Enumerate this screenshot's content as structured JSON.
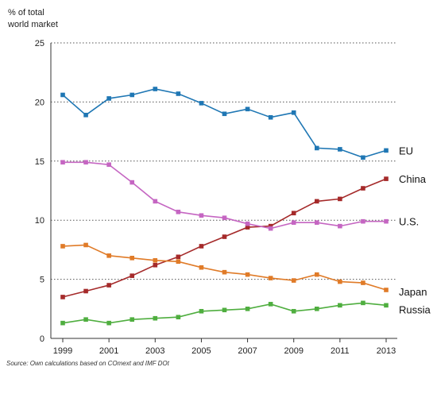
{
  "chart_data": {
    "type": "line",
    "ylabel_line1": "% of total",
    "ylabel_line2": "world market",
    "source": "Source: Own calculations based on COmext and IMF DOt",
    "x": [
      1999,
      2000,
      2001,
      2002,
      2003,
      2004,
      2005,
      2006,
      2007,
      2008,
      2009,
      2010,
      2011,
      2012,
      2013
    ],
    "xticks": [
      "1999",
      "2001",
      "2003",
      "2005",
      "2007",
      "2009",
      "2011",
      "2013"
    ],
    "yticks": [
      "0",
      "5",
      "10",
      "15",
      "20",
      "25"
    ],
    "ylim": [
      0,
      25
    ],
    "grid": "horizontal dotted",
    "series": [
      {
        "name": "EU",
        "color": "#1f77b4",
        "values": [
          20.6,
          18.9,
          20.3,
          20.6,
          21.1,
          20.7,
          19.9,
          19.0,
          19.4,
          18.7,
          19.1,
          16.1,
          16.0,
          15.3,
          15.9
        ]
      },
      {
        "name": "China",
        "color": "#a52a2a",
        "values": [
          3.5,
          4.0,
          4.5,
          5.3,
          6.2,
          6.9,
          7.8,
          8.6,
          9.4,
          9.5,
          10.6,
          11.6,
          11.8,
          12.7,
          13.5
        ]
      },
      {
        "name": "U.S.",
        "color": "#c566c2",
        "values": [
          14.9,
          14.9,
          14.7,
          13.2,
          11.6,
          10.7,
          10.4,
          10.2,
          9.7,
          9.3,
          9.8,
          9.8,
          9.5,
          9.9,
          9.9
        ]
      },
      {
        "name": "Japan",
        "color": "#e07b28",
        "values": [
          7.8,
          7.9,
          7.0,
          6.8,
          6.6,
          6.5,
          6.0,
          5.6,
          5.4,
          5.1,
          4.9,
          5.4,
          4.8,
          4.7,
          4.1
        ]
      },
      {
        "name": "Russia",
        "color": "#4fae3f",
        "values": [
          1.3,
          1.6,
          1.3,
          1.6,
          1.7,
          1.8,
          2.3,
          2.4,
          2.5,
          2.9,
          2.3,
          2.5,
          2.8,
          3.0,
          2.8
        ]
      }
    ]
  }
}
